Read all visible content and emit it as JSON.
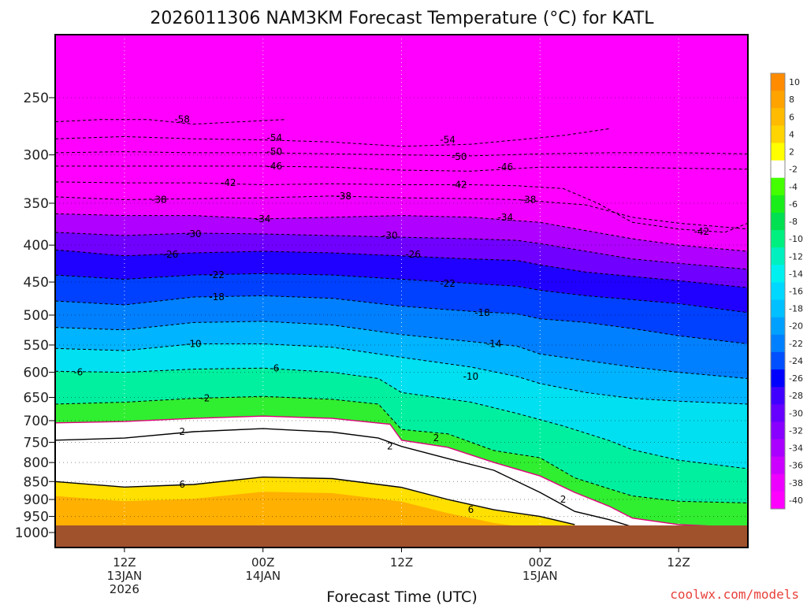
{
  "chart_data": {
    "type": "heatmap",
    "title": "2026011306 NAM3KM Forecast Temperature (°C) for KATL",
    "xlabel": "Forecast Time (UTC)",
    "ylabel": "",
    "y_ticks": [
      "250",
      "300",
      "350",
      "400",
      "450",
      "500",
      "550",
      "600",
      "650",
      "700",
      "750",
      "800",
      "850",
      "900",
      "950",
      "1000"
    ],
    "y_tick_values": [
      250,
      300,
      350,
      400,
      450,
      500,
      550,
      600,
      650,
      700,
      750,
      800,
      850,
      900,
      950,
      1000
    ],
    "x_ticks": [
      {
        "label": "12Z",
        "sub1": "13JAN",
        "sub2": "2026",
        "hour": 6
      },
      {
        "label": "00Z",
        "sub1": "14JAN",
        "sub2": "",
        "hour": 18
      },
      {
        "label": "12Z",
        "sub1": "",
        "sub2": "",
        "hour": 30
      },
      {
        "label": "00Z",
        "sub1": "15JAN",
        "sub2": "",
        "hour": 42
      },
      {
        "label": "12Z",
        "sub1": "",
        "sub2": "",
        "hour": 54
      }
    ],
    "x_range_hours": [
      0,
      60
    ],
    "colorbar": {
      "ticks": [
        "10",
        "8",
        "6",
        "4",
        "2",
        "-2",
        "-4",
        "-6",
        "-8",
        "-10",
        "-12",
        "-14",
        "-16",
        "-18",
        "-20",
        "-22",
        "-24",
        "-26",
        "-28",
        "-30",
        "-32",
        "-34",
        "-36",
        "-38",
        "-40"
      ],
      "colors": [
        "#ff8c00",
        "#ffa300",
        "#ffbb00",
        "#ffd400",
        "#ffff00",
        "#ffffff",
        "#44ff00",
        "#1aee1a",
        "#00e050",
        "#00f080",
        "#00f0c0",
        "#00f0f0",
        "#00d8ff",
        "#00c0ff",
        "#00a0ff",
        "#0080ff",
        "#0050ff",
        "#0000ff",
        "#4000ff",
        "#6600ff",
        "#8800ff",
        "#aa00ff",
        "#cc00ff",
        "#ee00ff",
        "#ff00ff"
      ]
    },
    "contours": [
      {
        "value": -58,
        "label": "-58",
        "style": "dashed",
        "points": [
          [
            0,
            270
          ],
          [
            4,
            268
          ],
          [
            8,
            268
          ],
          [
            12,
            272
          ],
          [
            16,
            270
          ],
          [
            20,
            268
          ]
        ]
      },
      {
        "value": -54,
        "label": "-54",
        "style": "dashed",
        "points": [
          [
            0,
            285
          ],
          [
            6,
            283
          ],
          [
            12,
            285
          ],
          [
            18,
            286
          ],
          [
            24,
            288
          ],
          [
            30,
            292
          ],
          [
            36,
            290
          ],
          [
            40,
            286
          ],
          [
            44,
            282
          ],
          [
            48,
            276
          ]
        ]
      },
      {
        "value": -50,
        "label": "-50",
        "style": "dashed",
        "points": [
          [
            0,
            298
          ],
          [
            6,
            297
          ],
          [
            12,
            298
          ],
          [
            18,
            298
          ],
          [
            24,
            299
          ],
          [
            30,
            300
          ],
          [
            36,
            301
          ],
          [
            42,
            299
          ],
          [
            48,
            298
          ],
          [
            54,
            298
          ],
          [
            60,
            299
          ]
        ]
      },
      {
        "value": -46,
        "label": "-46",
        "style": "dashed",
        "points": [
          [
            0,
            311
          ],
          [
            6,
            311
          ],
          [
            12,
            311
          ],
          [
            18,
            311
          ],
          [
            24,
            312
          ],
          [
            30,
            315
          ],
          [
            36,
            316
          ],
          [
            42,
            312
          ],
          [
            48,
            312
          ],
          [
            54,
            313
          ],
          [
            60,
            314
          ]
        ]
      },
      {
        "value": -42,
        "label": "-42",
        "style": "dashed",
        "points": [
          [
            0,
            327
          ],
          [
            6,
            328
          ],
          [
            12,
            328
          ],
          [
            18,
            330
          ],
          [
            24,
            329
          ],
          [
            30,
            330
          ],
          [
            36,
            330
          ],
          [
            40,
            331
          ],
          [
            44,
            334
          ],
          [
            47,
            350
          ],
          [
            50,
            372
          ],
          [
            54,
            380
          ],
          [
            58,
            384
          ],
          [
            60,
            373
          ]
        ]
      },
      {
        "value": -38,
        "label": "-38",
        "style": "dashed",
        "points": [
          [
            0,
            343
          ],
          [
            6,
            346
          ],
          [
            12,
            345
          ],
          [
            18,
            344
          ],
          [
            24,
            342
          ],
          [
            30,
            344
          ],
          [
            36,
            345
          ],
          [
            40,
            346
          ],
          [
            42,
            348
          ],
          [
            46,
            352
          ],
          [
            50,
            366
          ],
          [
            54,
            373
          ],
          [
            60,
            380
          ]
        ]
      },
      {
        "value": -34,
        "label": "-34",
        "style": "dashed",
        "points": [
          [
            0,
            362
          ],
          [
            6,
            364
          ],
          [
            12,
            364
          ],
          [
            18,
            368
          ],
          [
            24,
            366
          ],
          [
            30,
            364
          ],
          [
            36,
            366
          ],
          [
            40,
            370
          ],
          [
            42,
            372
          ],
          [
            46,
            382
          ],
          [
            50,
            392
          ],
          [
            54,
            400
          ],
          [
            60,
            408
          ]
        ]
      },
      {
        "value": -30,
        "label": "-30",
        "style": "dashed",
        "points": [
          [
            0,
            384
          ],
          [
            6,
            388
          ],
          [
            12,
            385
          ],
          [
            18,
            386
          ],
          [
            24,
            388
          ],
          [
            30,
            390
          ],
          [
            36,
            392
          ],
          [
            40,
            394
          ],
          [
            42,
            398
          ],
          [
            46,
            408
          ],
          [
            50,
            418
          ],
          [
            54,
            424
          ],
          [
            60,
            432
          ]
        ]
      },
      {
        "value": -26,
        "label": "-26",
        "style": "dashed",
        "points": [
          [
            0,
            406
          ],
          [
            6,
            414
          ],
          [
            12,
            410
          ],
          [
            18,
            408
          ],
          [
            24,
            410
          ],
          [
            30,
            414
          ],
          [
            36,
            418
          ],
          [
            40,
            420
          ],
          [
            42,
            426
          ],
          [
            46,
            436
          ],
          [
            50,
            442
          ],
          [
            54,
            448
          ],
          [
            60,
            458
          ]
        ]
      },
      {
        "value": -22,
        "label": "-22",
        "style": "dashed",
        "points": [
          [
            0,
            440
          ],
          [
            6,
            446
          ],
          [
            12,
            440
          ],
          [
            18,
            438
          ],
          [
            24,
            440
          ],
          [
            30,
            446
          ],
          [
            36,
            452
          ],
          [
            40,
            456
          ],
          [
            42,
            462
          ],
          [
            46,
            470
          ],
          [
            50,
            476
          ],
          [
            54,
            482
          ],
          [
            60,
            496
          ]
        ]
      },
      {
        "value": -18,
        "label": "-18",
        "style": "dashed",
        "points": [
          [
            0,
            478
          ],
          [
            6,
            484
          ],
          [
            12,
            472
          ],
          [
            18,
            470
          ],
          [
            24,
            474
          ],
          [
            30,
            486
          ],
          [
            36,
            494
          ],
          [
            40,
            498
          ],
          [
            42,
            506
          ],
          [
            46,
            512
          ],
          [
            50,
            522
          ],
          [
            54,
            534
          ],
          [
            60,
            548
          ]
        ]
      },
      {
        "value": -14,
        "label": "-14",
        "style": "dashed",
        "points": [
          [
            0,
            520
          ],
          [
            6,
            524
          ],
          [
            12,
            512
          ],
          [
            18,
            510
          ],
          [
            24,
            516
          ],
          [
            30,
            532
          ],
          [
            36,
            544
          ],
          [
            40,
            552
          ],
          [
            42,
            566
          ],
          [
            46,
            578
          ],
          [
            50,
            590
          ],
          [
            54,
            600
          ],
          [
            60,
            612
          ]
        ]
      },
      {
        "value": -10,
        "label": "-10",
        "style": "dashed",
        "points": [
          [
            0,
            556
          ],
          [
            6,
            560
          ],
          [
            12,
            548
          ],
          [
            18,
            548
          ],
          [
            24,
            554
          ],
          [
            30,
            572
          ],
          [
            36,
            590
          ],
          [
            40,
            608
          ],
          [
            42,
            622
          ],
          [
            46,
            640
          ],
          [
            50,
            652
          ],
          [
            54,
            658
          ],
          [
            60,
            664
          ]
        ]
      },
      {
        "value": -6,
        "label": "-6",
        "style": "dashed",
        "points": [
          [
            0,
            598
          ],
          [
            6,
            600
          ],
          [
            12,
            594
          ],
          [
            18,
            592
          ],
          [
            24,
            600
          ],
          [
            28,
            612
          ],
          [
            30,
            640
          ],
          [
            36,
            660
          ],
          [
            40,
            684
          ],
          [
            44,
            712
          ],
          [
            48,
            746
          ],
          [
            50,
            768
          ],
          [
            54,
            794
          ],
          [
            60,
            816
          ]
        ]
      },
      {
        "value": -2,
        "label": "-2",
        "style": "dashed",
        "points": [
          [
            0,
            664
          ],
          [
            6,
            660
          ],
          [
            12,
            652
          ],
          [
            18,
            648
          ],
          [
            24,
            654
          ],
          [
            28,
            664
          ],
          [
            30,
            720
          ],
          [
            34,
            730
          ],
          [
            38,
            770
          ],
          [
            42,
            788
          ],
          [
            45,
            840
          ],
          [
            48,
            870
          ],
          [
            50,
            890
          ],
          [
            54,
            905
          ],
          [
            60,
            910
          ]
        ]
      },
      {
        "value": 0,
        "label": "",
        "style": "magenta",
        "points": [
          [
            0,
            705
          ],
          [
            6,
            702
          ],
          [
            12,
            695
          ],
          [
            18,
            690
          ],
          [
            24,
            695
          ],
          [
            29,
            708
          ],
          [
            30,
            745
          ],
          [
            34,
            762
          ],
          [
            38,
            800
          ],
          [
            42,
            835
          ],
          [
            45,
            880
          ],
          [
            48,
            920
          ],
          [
            50,
            955
          ],
          [
            54,
            975
          ],
          [
            60,
            985
          ]
        ]
      },
      {
        "value": 2,
        "label": "2",
        "style": "solid",
        "points": [
          [
            0,
            745
          ],
          [
            6,
            740
          ],
          [
            12,
            725
          ],
          [
            18,
            718
          ],
          [
            24,
            726
          ],
          [
            28,
            740
          ],
          [
            30,
            760
          ],
          [
            34,
            790
          ],
          [
            38,
            820
          ],
          [
            42,
            880
          ],
          [
            45,
            935
          ],
          [
            48,
            960
          ],
          [
            50,
            982
          ]
        ]
      },
      {
        "value": 6,
        "label": "6",
        "style": "solid",
        "points": [
          [
            0,
            850
          ],
          [
            6,
            865
          ],
          [
            12,
            858
          ],
          [
            18,
            838
          ],
          [
            24,
            842
          ],
          [
            30,
            866
          ],
          [
            34,
            900
          ],
          [
            38,
            930
          ],
          [
            42,
            950
          ],
          [
            45,
            975
          ]
        ]
      }
    ],
    "contour_labels": [
      {
        "text": "-58",
        "hour": 11,
        "p": 268
      },
      {
        "text": "-54",
        "hour": 19,
        "p": 284
      },
      {
        "text": "-54",
        "hour": 34,
        "p": 286
      },
      {
        "text": "-50",
        "hour": 19,
        "p": 297
      },
      {
        "text": "-50",
        "hour": 35,
        "p": 302
      },
      {
        "text": "-46",
        "hour": 19,
        "p": 311
      },
      {
        "text": "-46",
        "hour": 39,
        "p": 312
      },
      {
        "text": "-42",
        "hour": 15,
        "p": 328
      },
      {
        "text": "-42",
        "hour": 35,
        "p": 330
      },
      {
        "text": "-42",
        "hour": 56,
        "p": 383
      },
      {
        "text": "-38",
        "hour": 9,
        "p": 346
      },
      {
        "text": "-38",
        "hour": 25,
        "p": 342
      },
      {
        "text": "-38",
        "hour": 41,
        "p": 346
      },
      {
        "text": "-34",
        "hour": 18,
        "p": 368
      },
      {
        "text": "-34",
        "hour": 39,
        "p": 366
      },
      {
        "text": "-30",
        "hour": 12,
        "p": 386
      },
      {
        "text": "-30",
        "hour": 29,
        "p": 388
      },
      {
        "text": "-26",
        "hour": 10,
        "p": 412
      },
      {
        "text": "-26",
        "hour": 31,
        "p": 412
      },
      {
        "text": "-22",
        "hour": 14,
        "p": 440
      },
      {
        "text": "-22",
        "hour": 34,
        "p": 452
      },
      {
        "text": "-18",
        "hour": 14,
        "p": 472
      },
      {
        "text": "-18",
        "hour": 37,
        "p": 496
      },
      {
        "text": "-14",
        "hour": 38,
        "p": 548
      },
      {
        "text": "-10",
        "hour": 12,
        "p": 548
      },
      {
        "text": "-10",
        "hour": 36,
        "p": 608
      },
      {
        "text": "-6",
        "hour": 2,
        "p": 600
      },
      {
        "text": "-6",
        "hour": 19,
        "p": 592
      },
      {
        "text": "-2",
        "hour": 13,
        "p": 652
      },
      {
        "text": "2",
        "hour": 11,
        "p": 725
      },
      {
        "text": "2",
        "hour": 29,
        "p": 760
      },
      {
        "text": "2",
        "hour": 33,
        "p": 740
      },
      {
        "text": "2",
        "hour": 44,
        "p": 900
      },
      {
        "text": "6",
        "hour": 11,
        "p": 858
      },
      {
        "text": "6",
        "hour": 36,
        "p": 930
      }
    ]
  },
  "credit": "coolwx.com/models"
}
